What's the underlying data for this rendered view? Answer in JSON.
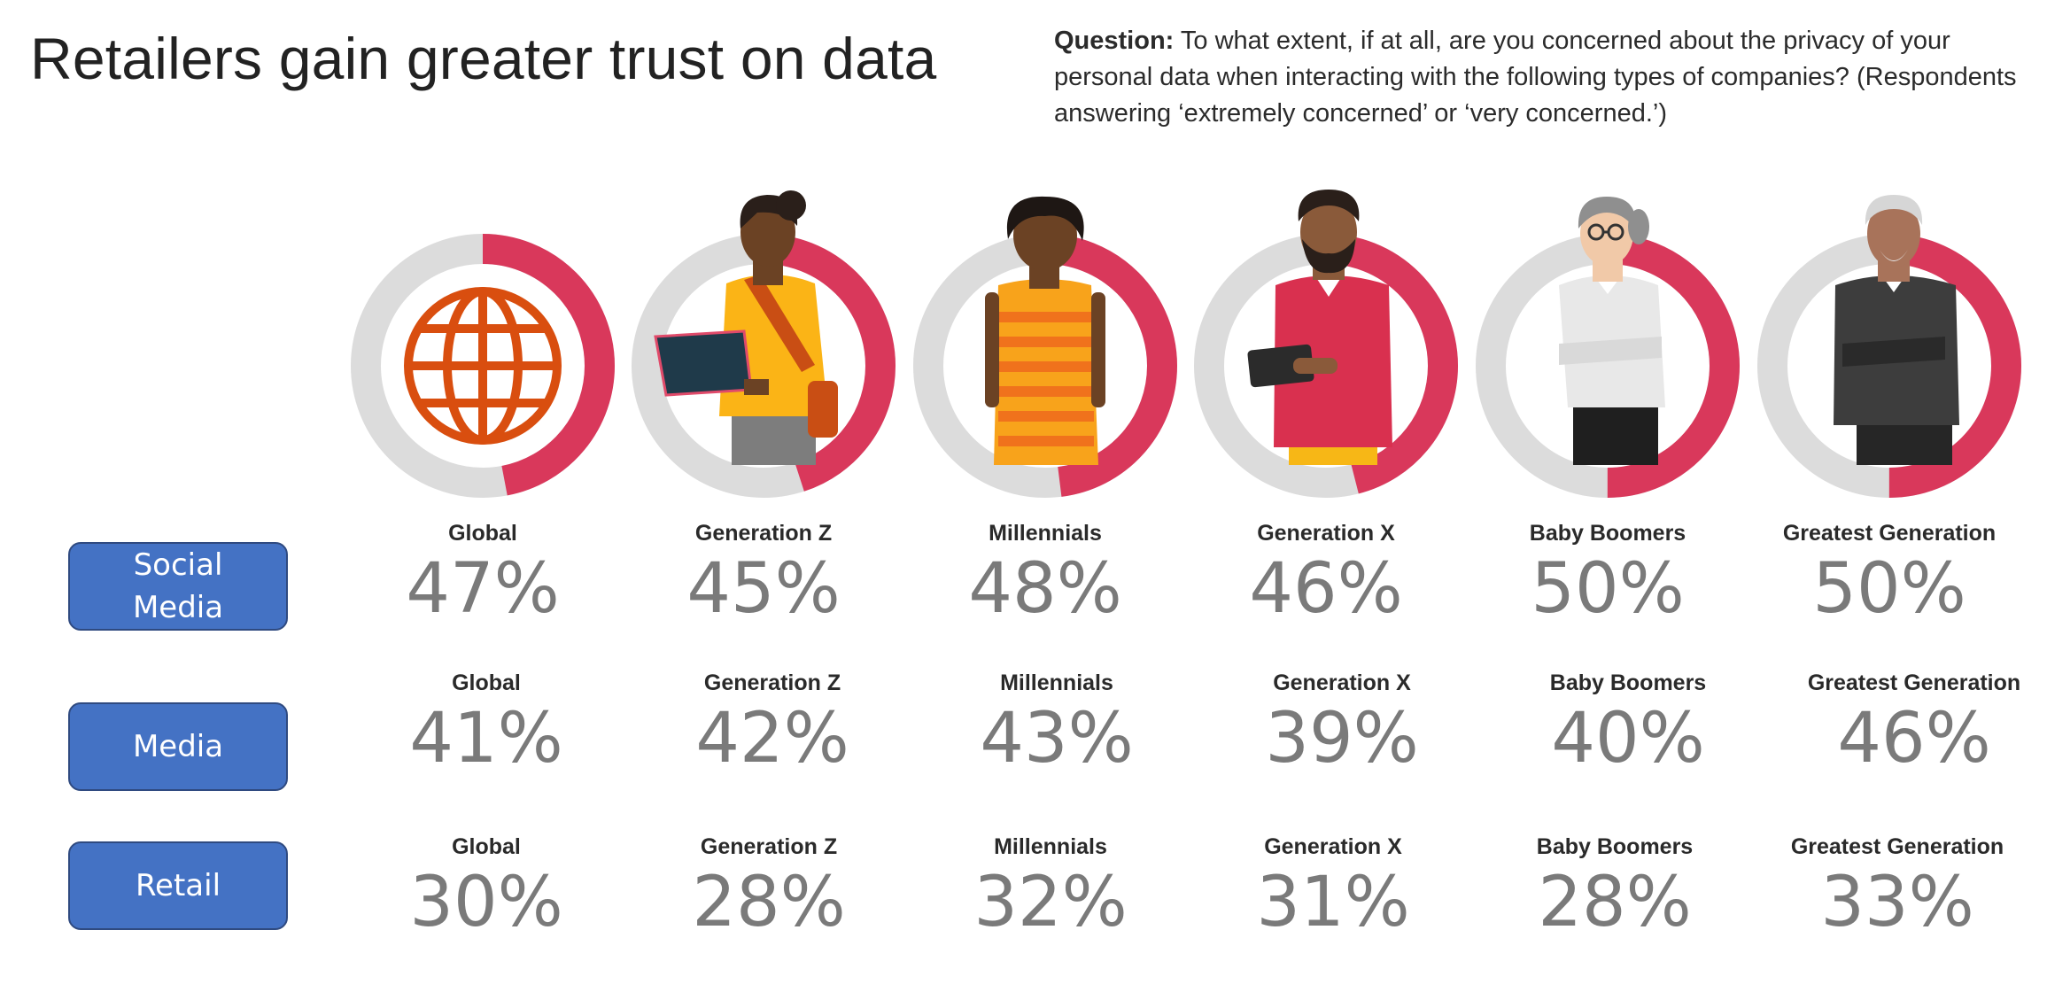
{
  "title": "Retailers gain greater trust on data",
  "question": {
    "bold": "Question:",
    "text": "To what extent, if at all, are you concerned about the privacy of your personal data when interacting with the following types of companies? (Respondents answering ‘extremely concerned’ or ‘very concerned.’)"
  },
  "colors": {
    "ring_fill": "#d9385b",
    "ring_track": "#dcdcdc",
    "button": "#4472c4",
    "globe": "#d94e0f"
  },
  "icons": [
    "globe-icon",
    "genz-person-icon",
    "millennial-person-icon",
    "genx-person-icon",
    "boomer-person-icon",
    "greatest-gen-person-icon"
  ],
  "chart_data": {
    "type": "table",
    "groups": [
      "Global",
      "Generation Z",
      "Millennials",
      "Generation X",
      "Baby Boomers",
      "Greatest Generation"
    ],
    "ring_values": [
      47,
      45,
      48,
      46,
      50,
      50
    ],
    "rows": [
      {
        "name": "Social Media",
        "name_lines": [
          "Social",
          "Media"
        ],
        "values": [
          "47%",
          "45%",
          "48%",
          "46%",
          "50%",
          "50%"
        ]
      },
      {
        "name": "Media",
        "name_lines": [
          "Media"
        ],
        "values": [
          "41%",
          "42%",
          "43%",
          "39%",
          "40%",
          "46%"
        ]
      },
      {
        "name": "Retail",
        "name_lines": [
          "Retail"
        ],
        "values": [
          "30%",
          "28%",
          "32%",
          "31%",
          "28%",
          "33%"
        ]
      }
    ]
  }
}
